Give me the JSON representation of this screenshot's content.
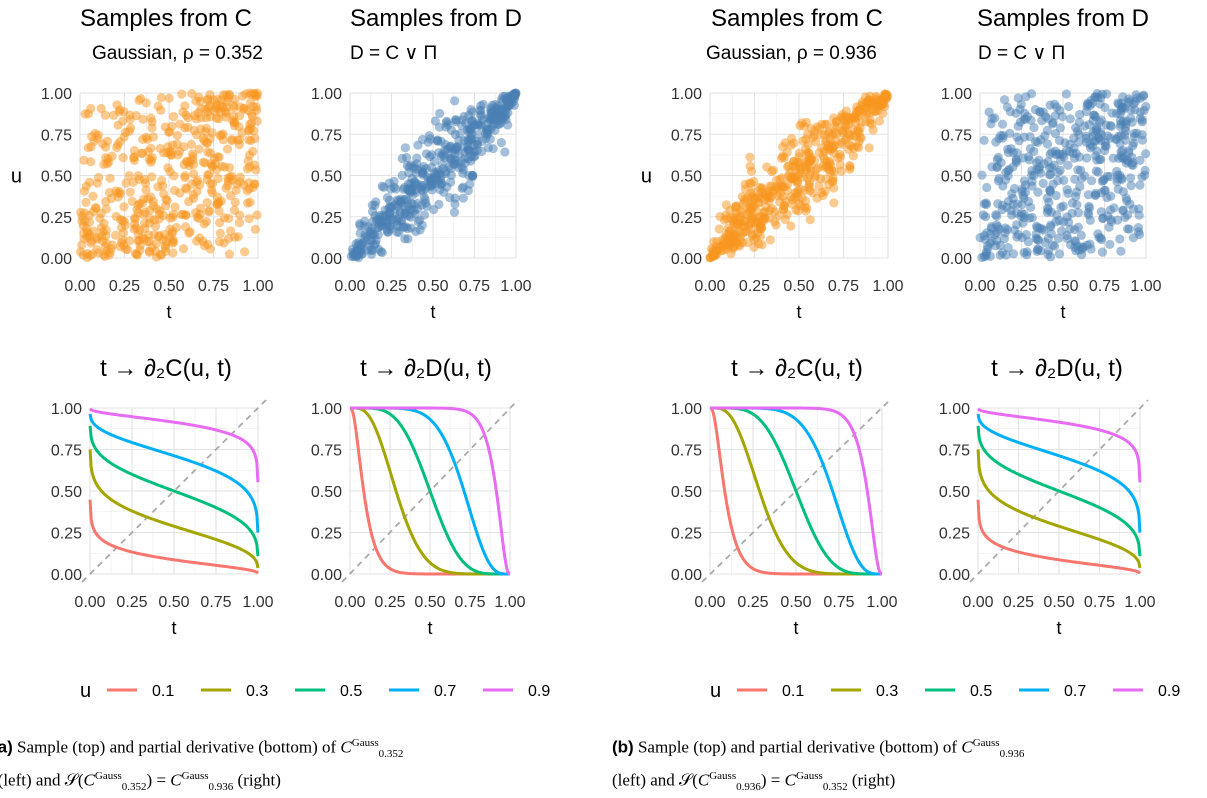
{
  "chart_data": [
    {
      "panel": "a",
      "plots": [
        {
          "type": "scatter",
          "title": "Samples from C",
          "subtitle": "Gaussian, ρ = 0.352",
          "xlabel": "t",
          "ylabel": "u",
          "xlim": [
            0,
            1
          ],
          "ylim": [
            0,
            1
          ],
          "color": "#f8961e",
          "rho": 0.352,
          "n_points": 500
        },
        {
          "type": "scatter",
          "title": "Samples from D",
          "subtitle": "D = C ∨ Π",
          "xlabel": "t",
          "ylabel": "",
          "xlim": [
            0,
            1
          ],
          "ylim": [
            0,
            1
          ],
          "color": "#4a80b4",
          "rho": 0.936,
          "n_points": 500
        },
        {
          "type": "line",
          "title": "t → ∂₂C(u, t)",
          "xlabel": "t",
          "ylabel": "",
          "xlim": [
            0,
            1
          ],
          "ylim": [
            0,
            1
          ],
          "rho": 0.352,
          "series": [
            {
              "name": "0.1",
              "u": 0.1,
              "color": "#f8766d"
            },
            {
              "name": "0.3",
              "u": 0.3,
              "color": "#a3a500"
            },
            {
              "name": "0.5",
              "u": 0.5,
              "color": "#00bf7d"
            },
            {
              "name": "0.7",
              "u": 0.7,
              "color": "#00b0f6"
            },
            {
              "name": "0.9",
              "u": 0.9,
              "color": "#e76bf3"
            }
          ]
        },
        {
          "type": "line",
          "title": "t → ∂₂D(u, t)",
          "xlabel": "t",
          "ylabel": "",
          "xlim": [
            0,
            1
          ],
          "ylim": [
            0,
            1
          ],
          "rho": 0.936,
          "series": [
            {
              "name": "0.1",
              "u": 0.1,
              "color": "#f8766d"
            },
            {
              "name": "0.3",
              "u": 0.3,
              "color": "#a3a500"
            },
            {
              "name": "0.5",
              "u": 0.5,
              "color": "#00bf7d"
            },
            {
              "name": "0.7",
              "u": 0.7,
              "color": "#00b0f6"
            },
            {
              "name": "0.9",
              "u": 0.9,
              "color": "#e76bf3"
            }
          ]
        }
      ],
      "legend": {
        "title": "u",
        "entries": [
          "0.1",
          "0.3",
          "0.5",
          "0.7",
          "0.9"
        ]
      },
      "caption_label": "(a)",
      "caption_text": "Sample (top) and partial derivative (bottom) of C^Gauss_0.352 (left) and S(C^Gauss_0.352) = C^Gauss_0.936 (right)"
    },
    {
      "panel": "b",
      "plots": [
        {
          "type": "scatter",
          "title": "Samples from C",
          "subtitle": "Gaussian, ρ = 0.936",
          "xlabel": "t",
          "ylabel": "u",
          "xlim": [
            0,
            1
          ],
          "ylim": [
            0,
            1
          ],
          "color": "#f8961e",
          "rho": 0.936,
          "n_points": 500
        },
        {
          "type": "scatter",
          "title": "Samples from D",
          "subtitle": "D = C ∨ Π",
          "xlabel": "t",
          "ylabel": "",
          "xlim": [
            0,
            1
          ],
          "ylim": [
            0,
            1
          ],
          "color": "#4a80b4",
          "rho": 0.352,
          "n_points": 500
        },
        {
          "type": "line",
          "title": "t → ∂₂C(u, t)",
          "xlabel": "t",
          "ylabel": "",
          "xlim": [
            0,
            1
          ],
          "ylim": [
            0,
            1
          ],
          "rho": 0.936,
          "series": [
            {
              "name": "0.1",
              "u": 0.1,
              "color": "#f8766d"
            },
            {
              "name": "0.3",
              "u": 0.3,
              "color": "#a3a500"
            },
            {
              "name": "0.5",
              "u": 0.5,
              "color": "#00bf7d"
            },
            {
              "name": "0.7",
              "u": 0.7,
              "color": "#00b0f6"
            },
            {
              "name": "0.9",
              "u": 0.9,
              "color": "#e76bf3"
            }
          ]
        },
        {
          "type": "line",
          "title": "t → ∂₂D(u, t)",
          "xlabel": "t",
          "ylabel": "",
          "xlim": [
            0,
            1
          ],
          "ylim": [
            0,
            1
          ],
          "rho": 0.352,
          "series": [
            {
              "name": "0.1",
              "u": 0.1,
              "color": "#f8766d"
            },
            {
              "name": "0.3",
              "u": 0.3,
              "color": "#a3a500"
            },
            {
              "name": "0.5",
              "u": 0.5,
              "color": "#00bf7d"
            },
            {
              "name": "0.7",
              "u": 0.7,
              "color": "#00b0f6"
            },
            {
              "name": "0.9",
              "u": 0.9,
              "color": "#e76bf3"
            }
          ]
        }
      ],
      "legend": {
        "title": "u",
        "entries": [
          "0.1",
          "0.3",
          "0.5",
          "0.7",
          "0.9"
        ]
      },
      "caption_label": "(b)",
      "caption_text": "Sample (top) and partial derivative (bottom) of C^Gauss_0.936 (left) and S(C^Gauss_0.936) = C^Gauss_0.352 (right)"
    }
  ],
  "axis_ticks": [
    "0.00",
    "0.25",
    "0.50",
    "0.75",
    "1.00"
  ],
  "captions": {
    "a": {
      "label": "(a)",
      "line1_pre": "Sample (top) and partial derivative (bottom) of ",
      "line2_pre": "(left) and ",
      "line2_post": " (right)",
      "c1": "C",
      "sup": "Gauss",
      "rho_left": "0.352",
      "rho_right": "0.936",
      "s": "𝒮"
    },
    "b": {
      "label": "(b)",
      "line1_pre": "Sample (top) and partial derivative (bottom) of ",
      "line2_pre": "(left) and ",
      "line2_post": " (right)",
      "c1": "C",
      "sup": "Gauss",
      "rho_left": "0.936",
      "rho_right": "0.352",
      "s": "𝒮"
    }
  }
}
